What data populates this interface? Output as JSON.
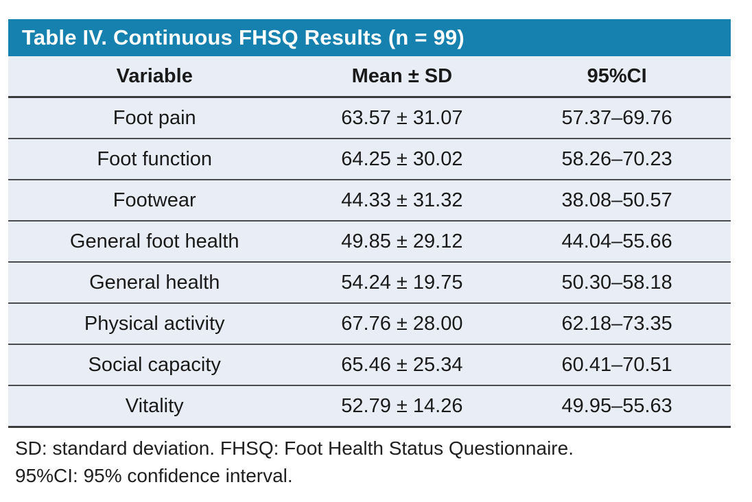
{
  "table": {
    "title": "Table IV. Continuous FHSQ Results (n = 99)",
    "columns": [
      "Variable",
      "Mean ± SD",
      "95%CI"
    ],
    "rows": [
      {
        "variable": "Foot pain",
        "mean_sd": "63.57 ± 31.07",
        "ci": "57.37–69.76"
      },
      {
        "variable": "Foot function",
        "mean_sd": "64.25 ± 30.02",
        "ci": "58.26–70.23"
      },
      {
        "variable": "Footwear",
        "mean_sd": "44.33 ± 31.32",
        "ci": "38.08–50.57"
      },
      {
        "variable": "General foot health",
        "mean_sd": "49.85 ± 29.12",
        "ci": "44.04–55.66"
      },
      {
        "variable": "General health",
        "mean_sd": "54.24 ± 19.75",
        "ci": "50.30–58.18"
      },
      {
        "variable": "Physical activity",
        "mean_sd": "67.76 ± 28.00",
        "ci": "62.18–73.35"
      },
      {
        "variable": "Social capacity",
        "mean_sd": "65.46 ± 25.34",
        "ci": "60.41–70.51"
      },
      {
        "variable": "Vitality",
        "mean_sd": "52.79 ± 14.26",
        "ci": "49.95–55.63"
      }
    ],
    "footnotes": [
      "SD: standard deviation. FHSQ: Foot Health Status Questionnaire.",
      "95%CI: 95% confidence interval."
    ],
    "sample_size": "n = 99"
  },
  "colors": {
    "title_bar_bg": "#1680af",
    "title_text": "#ffffff",
    "row_bg": "#e9edf5",
    "divider": "#4a4a4a",
    "body_text": "#1a1a1a",
    "page_bg": "#ffffff"
  }
}
